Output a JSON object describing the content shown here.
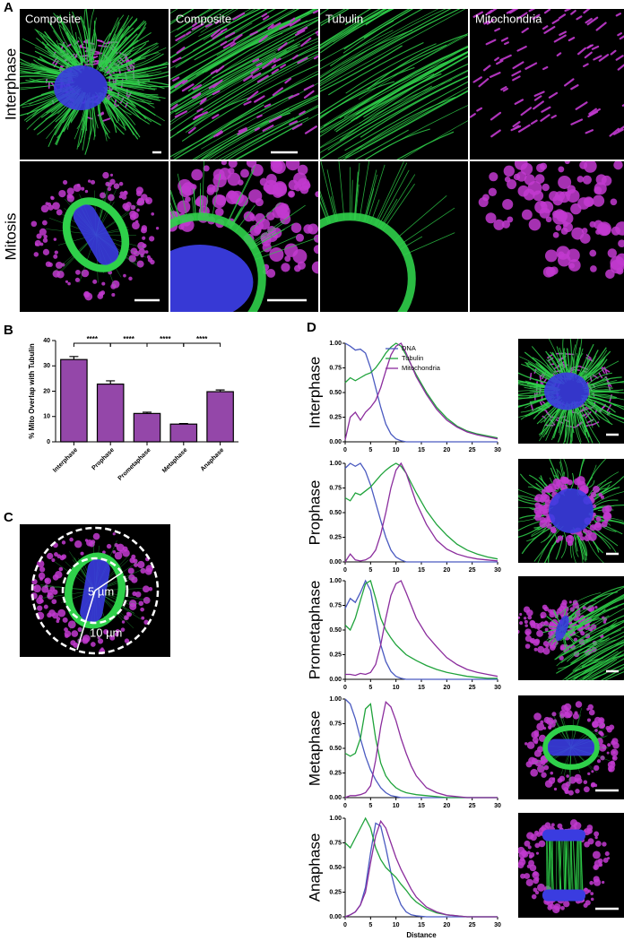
{
  "panel_labels": {
    "A": "A",
    "B": "B",
    "C": "C",
    "D": "D"
  },
  "panel_A": {
    "column_titles": [
      "Composite",
      "Composite",
      "Tubulin",
      "Mitochondria"
    ],
    "row_labels": [
      "Interphase",
      "Mitosis"
    ]
  },
  "panel_C": {
    "annotations": [
      "5 µm",
      "10 µm"
    ]
  },
  "chart_data": [
    {
      "type": "bar",
      "ylabel": "% Mito Overlap with Tubulin",
      "categories": [
        "Interphase",
        "Prophase",
        "Prometaphase",
        "Metaphase",
        "Anaphase"
      ],
      "values": [
        32.5,
        22.8,
        11.2,
        7.0,
        19.8
      ],
      "errors": [
        1.2,
        1.3,
        0.5,
        0.2,
        0.7
      ],
      "color": "#9447a9",
      "ylim": [
        0,
        40
      ],
      "yticks": [
        0,
        10,
        20,
        30,
        40
      ],
      "significance": [
        "****",
        "****",
        "****",
        "****"
      ]
    },
    {
      "type": "line",
      "title": "Interphase",
      "x": [
        0,
        1,
        2,
        3,
        4,
        5,
        6,
        7,
        8,
        9,
        10,
        11,
        12,
        13,
        14,
        16,
        18,
        20,
        22,
        24,
        26,
        28,
        30
      ],
      "series": [
        {
          "name": "DNA",
          "color": "#4a5ac0",
          "values": [
            1.0,
            0.97,
            0.93,
            0.94,
            0.9,
            0.75,
            0.55,
            0.35,
            0.18,
            0.08,
            0.03,
            0.01,
            0,
            0,
            0,
            0,
            0,
            0,
            0,
            0,
            0,
            0,
            0
          ]
        },
        {
          "name": "Tubulin",
          "color": "#1fa33b",
          "values": [
            0.6,
            0.65,
            0.62,
            0.65,
            0.68,
            0.7,
            0.75,
            0.82,
            0.9,
            0.96,
            1.0,
            0.97,
            0.88,
            0.78,
            0.68,
            0.5,
            0.35,
            0.24,
            0.16,
            0.11,
            0.08,
            0.06,
            0.04
          ]
        },
        {
          "name": "Mitochondria",
          "color": "#8b2d9d",
          "values": [
            0.02,
            0.25,
            0.3,
            0.22,
            0.3,
            0.35,
            0.42,
            0.55,
            0.72,
            0.88,
            0.97,
            1.0,
            0.9,
            0.78,
            0.66,
            0.48,
            0.33,
            0.22,
            0.15,
            0.1,
            0.07,
            0.05,
            0.03
          ]
        }
      ],
      "xlim": [
        0,
        30
      ],
      "ylim": [
        0,
        1
      ],
      "xticks": [
        0,
        5,
        10,
        15,
        20,
        25,
        30
      ],
      "yticks": [
        {
          "value": 0,
          "label": "0.00"
        },
        {
          "value": 0.25,
          "label": "0.25"
        },
        {
          "value": 0.5,
          "label": "0.50"
        },
        {
          "value": 0.75,
          "label": "0.75"
        },
        {
          "value": 1,
          "label": "1.00"
        }
      ],
      "legend": "upper center"
    },
    {
      "type": "line",
      "title": "Prophase",
      "x": [
        0,
        1,
        2,
        3,
        4,
        5,
        6,
        7,
        8,
        9,
        10,
        11,
        12,
        13,
        14,
        16,
        18,
        20,
        22,
        24,
        26,
        28,
        30
      ],
      "series": [
        {
          "color": "#4a5ac0",
          "values": [
            0.95,
            1.0,
            0.97,
            1.0,
            0.92,
            0.78,
            0.6,
            0.42,
            0.25,
            0.12,
            0.05,
            0.02,
            0,
            0,
            0,
            0,
            0,
            0,
            0,
            0,
            0,
            0,
            0
          ]
        },
        {
          "color": "#1fa33b",
          "values": [
            0.65,
            0.62,
            0.7,
            0.68,
            0.72,
            0.76,
            0.82,
            0.88,
            0.93,
            0.97,
            1.0,
            0.97,
            0.9,
            0.8,
            0.7,
            0.52,
            0.38,
            0.27,
            0.18,
            0.12,
            0.08,
            0.05,
            0.03
          ]
        },
        {
          "color": "#8b2d9d",
          "values": [
            0,
            0.08,
            0.02,
            0.01,
            0.02,
            0.05,
            0.12,
            0.28,
            0.5,
            0.75,
            0.93,
            1.0,
            0.9,
            0.75,
            0.6,
            0.38,
            0.22,
            0.13,
            0.08,
            0.05,
            0.03,
            0.02,
            0.01
          ]
        }
      ],
      "xlim": [
        0,
        30
      ],
      "ylim": [
        0,
        1
      ],
      "xticks": [
        0,
        5,
        10,
        15,
        20,
        25,
        30
      ],
      "yticks": [
        {
          "value": 0,
          "label": "0.00"
        },
        {
          "value": 0.25,
          "label": "0.25"
        },
        {
          "value": 0.5,
          "label": "0.50"
        },
        {
          "value": 0.75,
          "label": "0.75"
        },
        {
          "value": 1,
          "label": "1.00"
        }
      ]
    },
    {
      "type": "line",
      "title": "Prometaphase",
      "x": [
        0,
        1,
        2,
        3,
        4,
        5,
        6,
        7,
        8,
        9,
        10,
        11,
        12,
        13,
        14,
        16,
        18,
        20,
        22,
        24,
        26,
        28,
        30
      ],
      "series": [
        {
          "color": "#4a5ac0",
          "values": [
            0.72,
            0.82,
            0.78,
            0.88,
            1.0,
            0.9,
            0.62,
            0.35,
            0.18,
            0.08,
            0.03,
            0.01,
            0,
            0,
            0,
            0,
            0,
            0,
            0,
            0,
            0,
            0,
            0
          ]
        },
        {
          "color": "#1fa33b",
          "values": [
            0.55,
            0.5,
            0.62,
            0.8,
            0.97,
            1.0,
            0.82,
            0.62,
            0.5,
            0.42,
            0.35,
            0.3,
            0.25,
            0.22,
            0.19,
            0.14,
            0.1,
            0.07,
            0.05,
            0.03,
            0.02,
            0.01,
            0.01
          ]
        },
        {
          "color": "#8b2d9d",
          "values": [
            0.05,
            0.05,
            0.04,
            0.06,
            0.05,
            0.07,
            0.15,
            0.35,
            0.62,
            0.85,
            0.97,
            1.0,
            0.88,
            0.75,
            0.62,
            0.45,
            0.33,
            0.22,
            0.15,
            0.1,
            0.07,
            0.05,
            0.03
          ]
        }
      ],
      "xlim": [
        0,
        30
      ],
      "ylim": [
        0,
        1
      ],
      "xticks": [
        0,
        5,
        10,
        15,
        20,
        25,
        30
      ],
      "yticks": [
        {
          "value": 0,
          "label": "0.00"
        },
        {
          "value": 0.25,
          "label": "0.25"
        },
        {
          "value": 0.5,
          "label": "0.50"
        },
        {
          "value": 0.75,
          "label": "0.75"
        },
        {
          "value": 1,
          "label": "1.00"
        }
      ]
    },
    {
      "type": "line",
      "title": "Metaphase",
      "x": [
        0,
        1,
        2,
        3,
        4,
        5,
        6,
        7,
        8,
        9,
        10,
        11,
        12,
        13,
        14,
        16,
        18,
        20,
        22,
        24,
        26,
        28,
        30
      ],
      "series": [
        {
          "color": "#4a5ac0",
          "values": [
            1.0,
            0.95,
            0.8,
            0.6,
            0.42,
            0.28,
            0.18,
            0.1,
            0.05,
            0.02,
            0.01,
            0,
            0,
            0,
            0,
            0,
            0,
            0,
            0,
            0,
            0,
            0,
            0
          ]
        },
        {
          "color": "#1fa33b",
          "values": [
            0.45,
            0.42,
            0.45,
            0.6,
            0.9,
            0.95,
            0.6,
            0.35,
            0.22,
            0.15,
            0.1,
            0.07,
            0.05,
            0.04,
            0.03,
            0.02,
            0.01,
            0,
            0,
            0,
            0,
            0,
            0
          ]
        },
        {
          "color": "#8b2d9d",
          "values": [
            0,
            0.02,
            0.02,
            0.03,
            0.05,
            0.12,
            0.38,
            0.72,
            0.97,
            0.92,
            0.78,
            0.6,
            0.45,
            0.32,
            0.22,
            0.1,
            0.05,
            0.02,
            0.01,
            0,
            0,
            0,
            0
          ]
        }
      ],
      "xlim": [
        0,
        30
      ],
      "ylim": [
        0,
        1
      ],
      "xticks": [
        0,
        5,
        10,
        15,
        20,
        25,
        30
      ],
      "yticks": [
        {
          "value": 0,
          "label": "0.00"
        },
        {
          "value": 0.25,
          "label": "0.25"
        },
        {
          "value": 0.5,
          "label": "0.50"
        },
        {
          "value": 0.75,
          "label": "0.75"
        },
        {
          "value": 1,
          "label": "1.00"
        }
      ]
    },
    {
      "type": "line",
      "title": "Anaphase",
      "xlabel": "Distance",
      "x": [
        0,
        1,
        2,
        3,
        4,
        5,
        6,
        7,
        8,
        9,
        10,
        11,
        12,
        13,
        14,
        16,
        18,
        20,
        22,
        24,
        26,
        28,
        30
      ],
      "series": [
        {
          "color": "#4a5ac0",
          "values": [
            0,
            0.02,
            0.05,
            0.12,
            0.3,
            0.65,
            0.95,
            0.92,
            0.7,
            0.45,
            0.25,
            0.12,
            0.05,
            0.02,
            0.01,
            0,
            0,
            0,
            0,
            0,
            0,
            0,
            0
          ]
        },
        {
          "color": "#1fa33b",
          "values": [
            0.75,
            0.7,
            0.8,
            0.9,
            1.0,
            0.9,
            0.7,
            0.58,
            0.5,
            0.45,
            0.4,
            0.33,
            0.27,
            0.2,
            0.15,
            0.08,
            0.04,
            0.02,
            0.01,
            0,
            0,
            0,
            0
          ]
        },
        {
          "color": "#8b2d9d",
          "values": [
            0,
            0.02,
            0.05,
            0.12,
            0.25,
            0.55,
            0.82,
            0.97,
            0.9,
            0.75,
            0.6,
            0.48,
            0.38,
            0.28,
            0.2,
            0.1,
            0.05,
            0.02,
            0.01,
            0,
            0,
            0,
            0
          ]
        }
      ],
      "xlim": [
        0,
        30
      ],
      "ylim": [
        0,
        1
      ],
      "xticks": [
        0,
        5,
        10,
        15,
        20,
        25,
        30
      ],
      "yticks": [
        {
          "value": 0,
          "label": "0.00"
        },
        {
          "value": 0.25,
          "label": "0.25"
        },
        {
          "value": 0.5,
          "label": "0.50"
        },
        {
          "value": 0.75,
          "label": "0.75"
        },
        {
          "value": 1,
          "label": "1.00"
        }
      ]
    }
  ]
}
